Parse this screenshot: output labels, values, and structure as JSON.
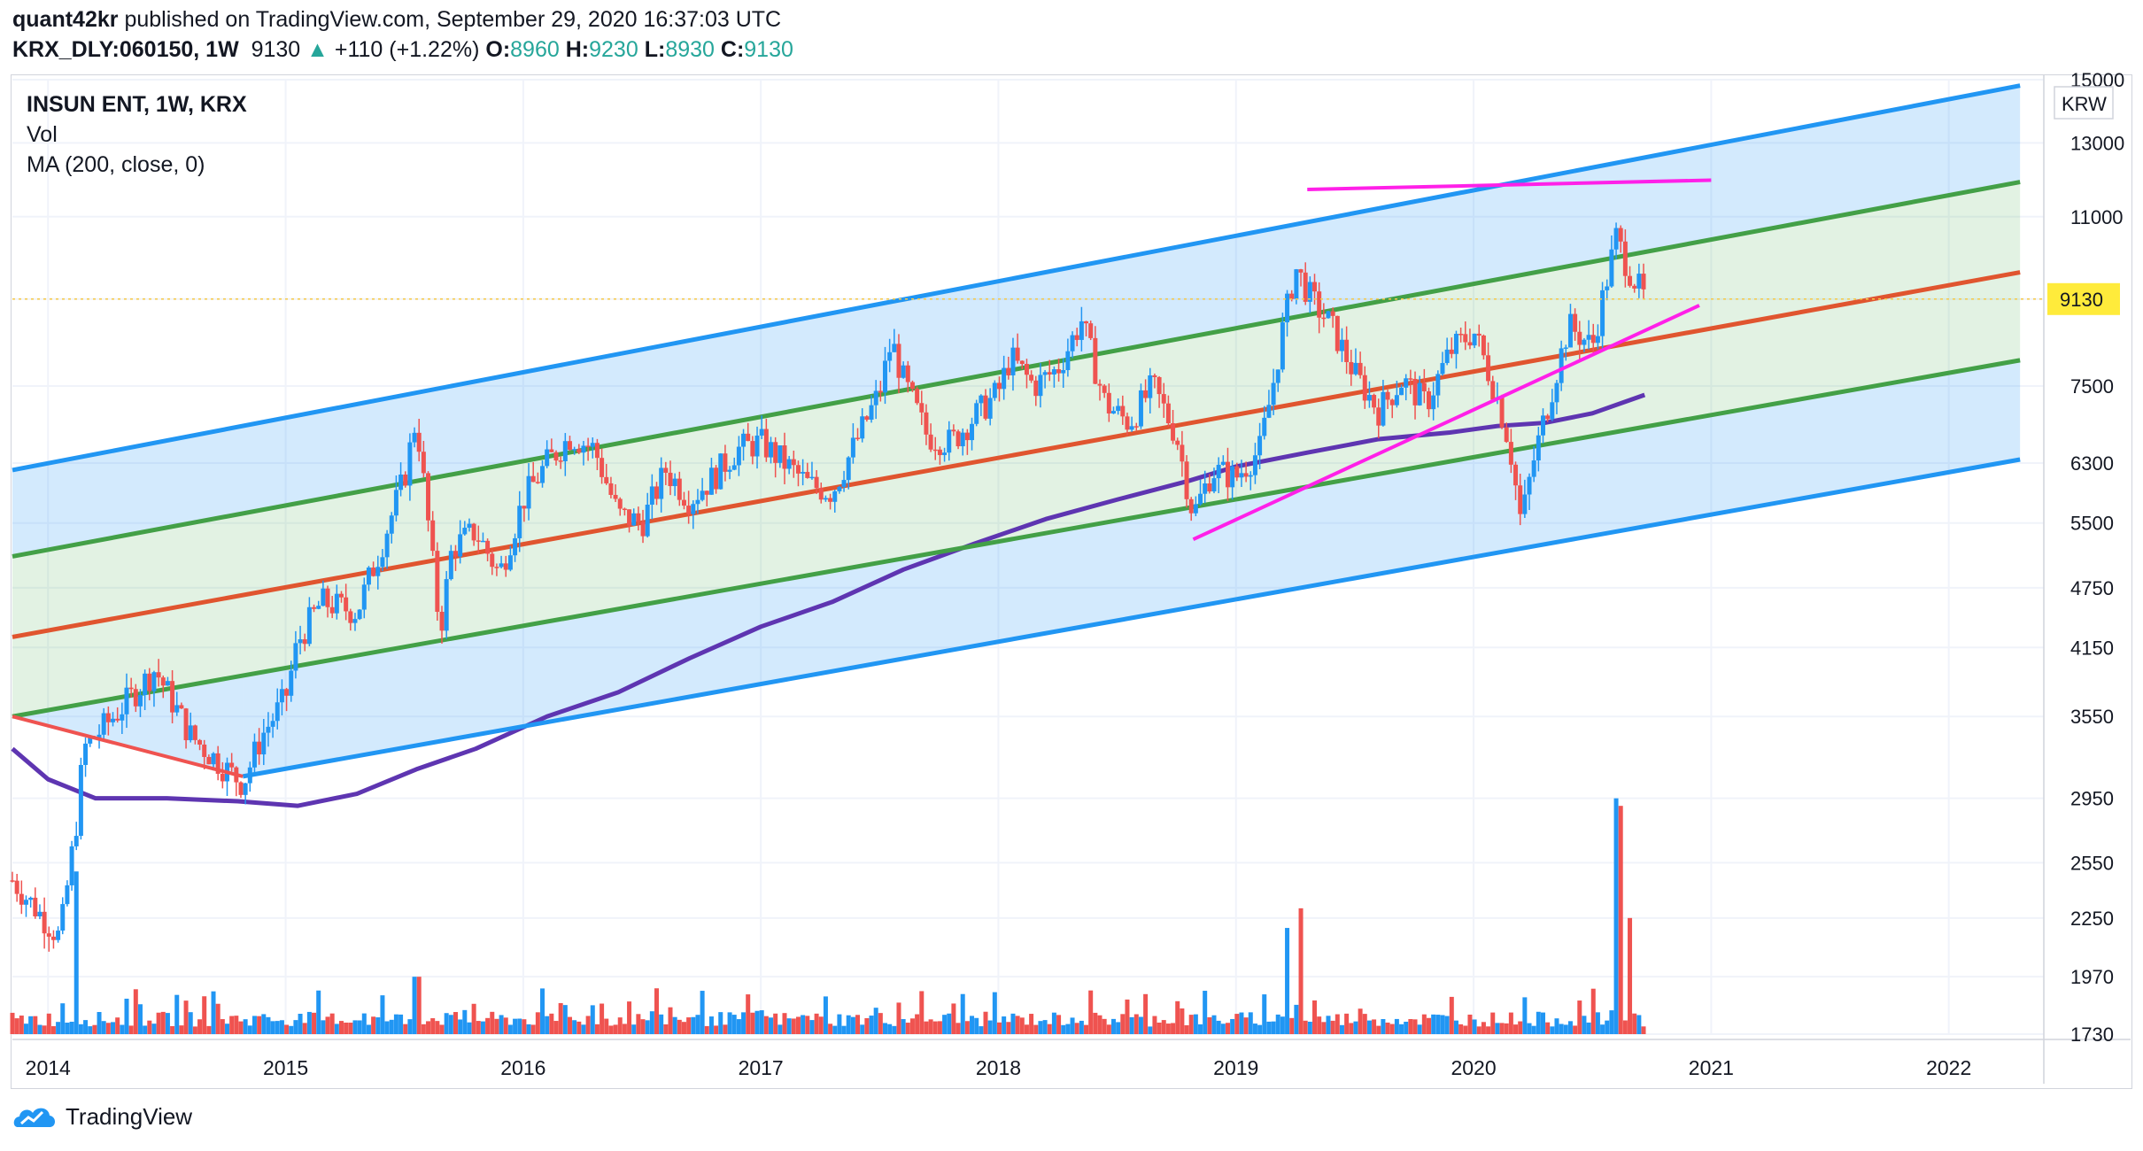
{
  "header": {
    "author": "quant42kr",
    "published_text": "published on TradingView.com, September 29, 2020 16:37:03 UTC",
    "symbol": "KRX_DLY:060150, 1W",
    "last": "9130",
    "arrow": "▲",
    "change": "+110 (+1.22%)",
    "o_label": "O:",
    "o_value": "8960",
    "h_label": "H:",
    "h_value": "9230",
    "l_label": "L:",
    "l_value": "8930",
    "c_label": "C:",
    "c_value": "9130"
  },
  "legend": {
    "title": "INSUN ENT, 1W, KRX",
    "vol": "Vol",
    "ma": "MA (200, close, 0)"
  },
  "footer": {
    "brand": "TradingView"
  },
  "colors": {
    "up": "#26a69a",
    "candle_up": "#2196f3",
    "candle_down": "#ef5350",
    "channel_outer": "#2196f3",
    "channel_mid": "#43a047",
    "channel_center": "#e0552f",
    "ma": "#5e35b1",
    "trend": "#ff20e8",
    "price_badge": "#ffeb3b"
  },
  "chart_data": {
    "type": "candlestick",
    "symbol": "INSUN ENT",
    "interval": "1W",
    "exchange": "KRX",
    "currency": "KRW",
    "log_scale": true,
    "ylim": [
      1730,
      15000
    ],
    "y_ticks": [
      15000,
      13000,
      11000,
      9130,
      7500,
      6300,
      5500,
      4750,
      4150,
      3550,
      2950,
      2550,
      2250,
      1970,
      1730
    ],
    "x_ticks": [
      "2014",
      "2015",
      "2016",
      "2017",
      "2018",
      "2019",
      "2020",
      "2021",
      "2022"
    ],
    "x_range": [
      2013.85,
      2022.4
    ],
    "last_price": 9130,
    "price_anchors": [
      [
        2013.85,
        2450
      ],
      [
        2014.05,
        2150
      ],
      [
        2014.12,
        2800
      ],
      [
        2014.15,
        3300
      ],
      [
        2014.3,
        3600
      ],
      [
        2014.45,
        3950
      ],
      [
        2014.6,
        3400
      ],
      [
        2014.75,
        3150
      ],
      [
        2014.82,
        3050
      ],
      [
        2014.9,
        3400
      ],
      [
        2015.0,
        3700
      ],
      [
        2015.05,
        4200
      ],
      [
        2015.15,
        4600
      ],
      [
        2015.3,
        4500
      ],
      [
        2015.4,
        5200
      ],
      [
        2015.5,
        6100
      ],
      [
        2015.55,
        7000
      ],
      [
        2015.6,
        5500
      ],
      [
        2015.65,
        4300
      ],
      [
        2015.7,
        5200
      ],
      [
        2015.8,
        5400
      ],
      [
        2015.9,
        4900
      ],
      [
        2016.0,
        5800
      ],
      [
        2016.1,
        6300
      ],
      [
        2016.2,
        6700
      ],
      [
        2016.3,
        6500
      ],
      [
        2016.4,
        5600
      ],
      [
        2016.5,
        5500
      ],
      [
        2016.6,
        6200
      ],
      [
        2016.7,
        5800
      ],
      [
        2016.8,
        6100
      ],
      [
        2016.9,
        6500
      ],
      [
        2017.0,
        6600
      ],
      [
        2017.1,
        6300
      ],
      [
        2017.2,
        6000
      ],
      [
        2017.3,
        5900
      ],
      [
        2017.4,
        6600
      ],
      [
        2017.5,
        7400
      ],
      [
        2017.55,
        8300
      ],
      [
        2017.6,
        7600
      ],
      [
        2017.7,
        6700
      ],
      [
        2017.8,
        6600
      ],
      [
        2017.9,
        7000
      ],
      [
        2018.0,
        7400
      ],
      [
        2018.05,
        8000
      ],
      [
        2018.15,
        7500
      ],
      [
        2018.25,
        7800
      ],
      [
        2018.35,
        8700
      ],
      [
        2018.45,
        7200
      ],
      [
        2018.55,
        6900
      ],
      [
        2018.65,
        7500
      ],
      [
        2018.75,
        6700
      ],
      [
        2018.82,
        5600
      ],
      [
        2018.9,
        6200
      ],
      [
        2019.0,
        6100
      ],
      [
        2019.1,
        6500
      ],
      [
        2019.15,
        7400
      ],
      [
        2019.2,
        8600
      ],
      [
        2019.25,
        9800
      ],
      [
        2019.32,
        9100
      ],
      [
        2019.4,
        8600
      ],
      [
        2019.5,
        7700
      ],
      [
        2019.6,
        7100
      ],
      [
        2019.7,
        7600
      ],
      [
        2019.8,
        7200
      ],
      [
        2019.9,
        8100
      ],
      [
        2020.0,
        8500
      ],
      [
        2020.05,
        7900
      ],
      [
        2020.1,
        7300
      ],
      [
        2020.15,
        6600
      ],
      [
        2020.2,
        5500
      ],
      [
        2020.25,
        6300
      ],
      [
        2020.32,
        7300
      ],
      [
        2020.4,
        8600
      ],
      [
        2020.5,
        8200
      ],
      [
        2020.55,
        9300
      ],
      [
        2020.6,
        10500
      ],
      [
        2020.65,
        9800
      ],
      [
        2020.72,
        9130
      ]
    ],
    "volume_spikes": [
      [
        2014.12,
        2500
      ],
      [
        2015.55,
        1970
      ],
      [
        2019.22,
        2200
      ],
      [
        2019.27,
        2300
      ],
      [
        2020.6,
        2950
      ],
      [
        2020.62,
        2900
      ],
      [
        2020.65,
        2250
      ]
    ],
    "ma200": [
      [
        2013.85,
        3300
      ],
      [
        2014.0,
        3080
      ],
      [
        2014.2,
        2950
      ],
      [
        2014.5,
        2950
      ],
      [
        2014.8,
        2930
      ],
      [
        2015.05,
        2900
      ],
      [
        2015.3,
        2980
      ],
      [
        2015.55,
        3150
      ],
      [
        2015.8,
        3300
      ],
      [
        2016.1,
        3550
      ],
      [
        2016.4,
        3750
      ],
      [
        2016.7,
        4050
      ],
      [
        2017.0,
        4350
      ],
      [
        2017.3,
        4600
      ],
      [
        2017.6,
        4950
      ],
      [
        2017.9,
        5250
      ],
      [
        2018.2,
        5550
      ],
      [
        2018.5,
        5800
      ],
      [
        2018.8,
        6050
      ],
      [
        2019.0,
        6250
      ],
      [
        2019.3,
        6450
      ],
      [
        2019.6,
        6650
      ],
      [
        2019.9,
        6750
      ],
      [
        2020.1,
        6850
      ],
      [
        2020.3,
        6900
      ],
      [
        2020.5,
        7050
      ],
      [
        2020.72,
        7350
      ]
    ],
    "channel_lines": [
      {
        "name": "outer_upper",
        "points": [
          [
            2013.85,
            6200
          ],
          [
            2022.3,
            14800
          ]
        ]
      },
      {
        "name": "mid_upper",
        "points": [
          [
            2013.85,
            5100
          ],
          [
            2022.3,
            11900
          ]
        ]
      },
      {
        "name": "center",
        "points": [
          [
            2013.85,
            4250
          ],
          [
            2022.3,
            9700
          ]
        ]
      },
      {
        "name": "mid_lower",
        "points": [
          [
            2013.85,
            3550
          ],
          [
            2022.3,
            7950
          ]
        ]
      },
      {
        "name": "outer_lower",
        "points": [
          [
            2014.82,
            3100
          ],
          [
            2022.3,
            6350
          ]
        ]
      }
    ],
    "trend_lines": [
      [
        [
          2019.3,
          11700
        ],
        [
          2021.0,
          11950
        ]
      ],
      [
        [
          2018.82,
          5300
        ],
        [
          2020.95,
          9000
        ]
      ],
      [
        [
          2013.85,
          3550
        ],
        [
          2014.82,
          3100
        ]
      ]
    ]
  }
}
